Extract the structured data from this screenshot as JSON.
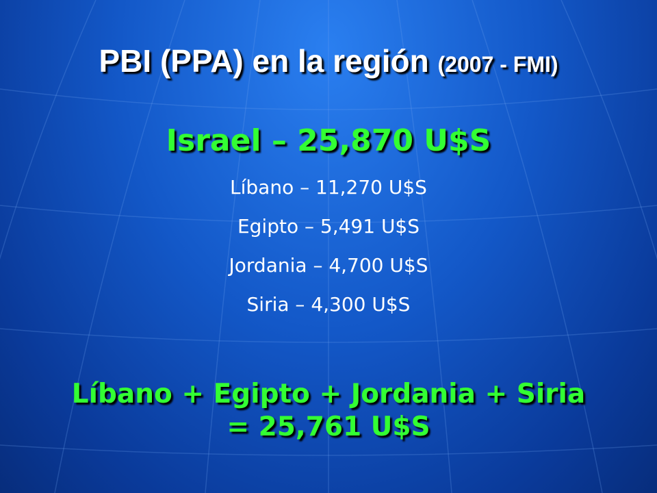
{
  "slide": {
    "title": "PBI (PPA) en la región",
    "title_note": "(2007 - FMI)",
    "highlight": "Israel – 25,870 U$S",
    "items": [
      "Líbano – 11,270 U$S",
      "Egipto – 5,491 U$S",
      "Jordania – 4,700 U$S",
      "Siria – 4,300 U$S"
    ],
    "summary": "Líbano + Egipto + Jordania + Siria = 25,761 U$S"
  }
}
